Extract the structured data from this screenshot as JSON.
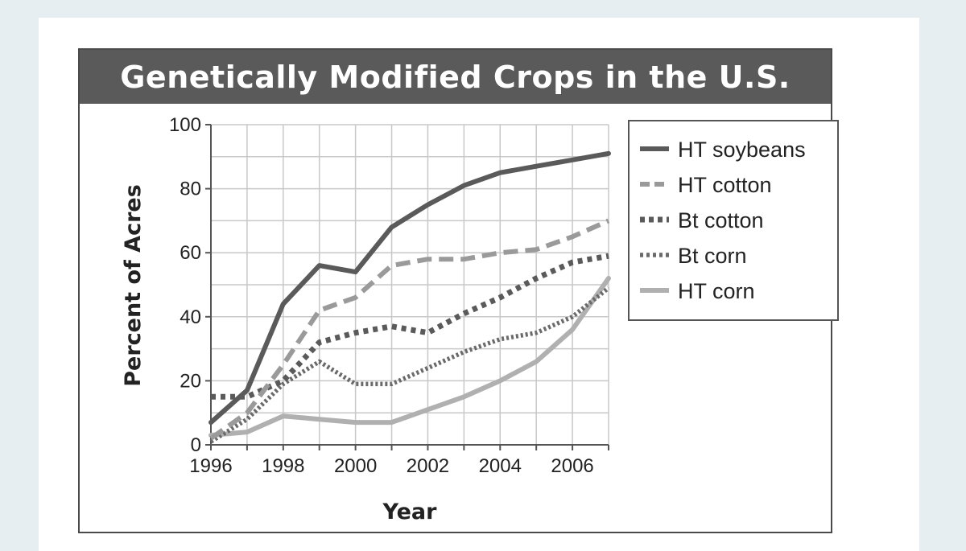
{
  "chart_data": {
    "type": "line",
    "title": "Genetically Modified Crops in the U.S.",
    "xlabel": "Year",
    "ylabel": "Percent of Acres",
    "xlim": [
      1996,
      2007
    ],
    "ylim": [
      0,
      100
    ],
    "x_ticks": [
      1996,
      1998,
      2000,
      2002,
      2004,
      2006
    ],
    "y_ticks": [
      0,
      20,
      40,
      60,
      80,
      100
    ],
    "grid": true,
    "legend_position": "right",
    "x": [
      1996,
      1997,
      1998,
      1999,
      2000,
      2001,
      2002,
      2003,
      2004,
      2005,
      2006,
      2007
    ],
    "series": [
      {
        "name": "HT soybeans",
        "style": "solid",
        "color": "#5a5a5a",
        "values": [
          7,
          17,
          44,
          56,
          54,
          68,
          75,
          81,
          85,
          87,
          89,
          91
        ]
      },
      {
        "name": "HT cotton",
        "style": "dashed",
        "color": "#9a9a9a",
        "values": [
          2,
          10,
          25,
          42,
          46,
          56,
          58,
          58,
          60,
          61,
          65,
          70
        ]
      },
      {
        "name": "Bt cotton",
        "style": "dotted",
        "color": "#5a5a5a",
        "values": [
          15,
          15,
          20,
          32,
          35,
          37,
          35,
          41,
          46,
          52,
          57,
          59
        ]
      },
      {
        "name": "Bt corn",
        "style": "dotted-fine",
        "color": "#6a6a6a",
        "values": [
          1,
          8,
          19,
          26,
          19,
          19,
          24,
          29,
          33,
          35,
          40,
          49
        ]
      },
      {
        "name": "HT corn",
        "style": "solid",
        "color": "#b0b0b0",
        "values": [
          3,
          4,
          9,
          8,
          7,
          7,
          11,
          15,
          20,
          26,
          36,
          52
        ]
      }
    ]
  }
}
